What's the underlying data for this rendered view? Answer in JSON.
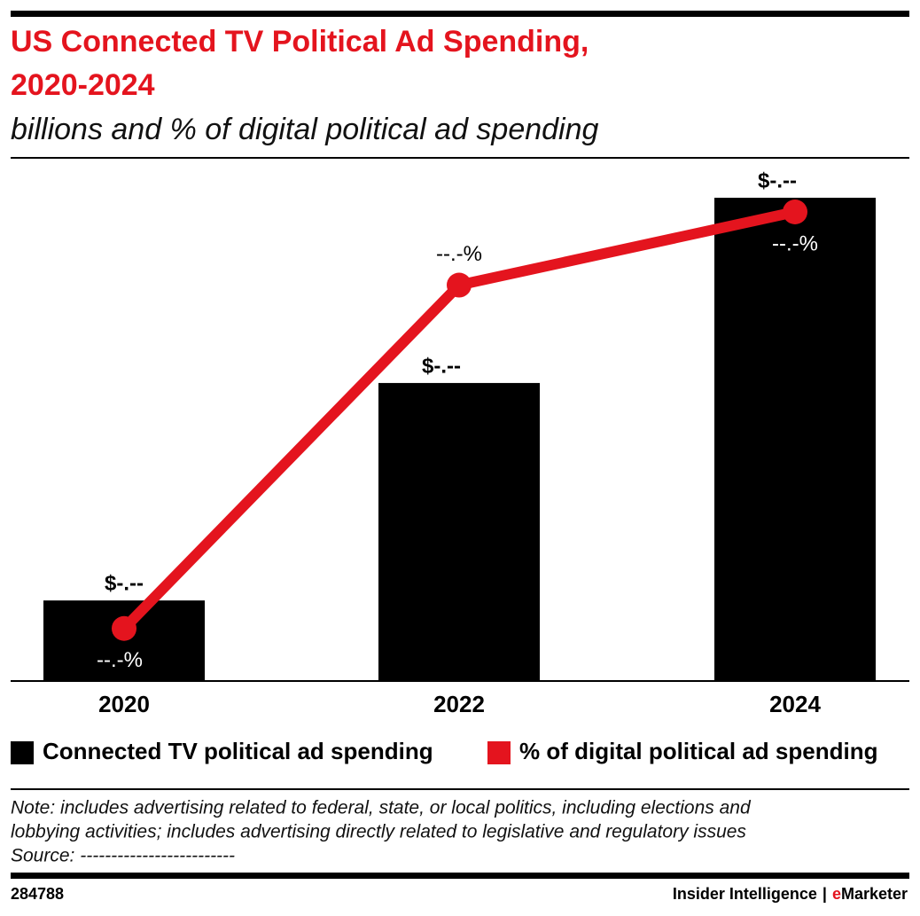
{
  "chart_data": {
    "type": "bar",
    "title": [
      "US Connected TV Political Ad Spending,",
      "2020-2024"
    ],
    "subtitle": "billions and % of digital political ad spending",
    "categories": [
      "2020",
      "2022",
      "2024"
    ],
    "series": [
      {
        "name": "Connected TV political ad spending",
        "color": "#000000",
        "type": "bar",
        "values": [
          0.3,
          1.11,
          1.8
        ],
        "value_labels": [
          "$-.--",
          "$-.--",
          "$-.--"
        ]
      },
      {
        "name": "% of digital political ad spending",
        "color": "#e4141e",
        "type": "line",
        "axis": "y2",
        "values": [
          2.8,
          21.1,
          25.0
        ],
        "value_labels": [
          "--.-%",
          "--.-%",
          "--.-%"
        ]
      }
    ],
    "note": [
      "Note: includes advertising related to federal, state, or local politics, including elections and",
      "lobbying activities; includes advertising directly related to legislative and regulatory issues"
    ],
    "source": "Source: -------------------------",
    "chart_id": "284788",
    "publisher": "Insider Intelligence",
    "separator": "|",
    "brand_prefix": "e",
    "brand_name": "Marketer"
  }
}
